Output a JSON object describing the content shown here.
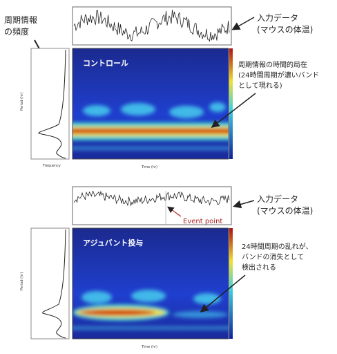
{
  "top": {
    "frequency_label": [
      "周期情報",
      "の頻度"
    ],
    "input_label": [
      "入力データ",
      "(マウスの体温)"
    ],
    "heatmap_title": "コントロール",
    "annotation": [
      "周期情報の時間的局在",
      "(24時間周期が濃いバンド",
      "として現れる)"
    ],
    "period_axis": "Period (hr)",
    "time_axis": "Time (hr)",
    "frequency_axis": "Frequency"
  },
  "bottom": {
    "input_label": [
      "入力データ",
      "(マウスの体温)"
    ],
    "event_label": "Event point",
    "heatmap_title": "アジュバント投与",
    "annotation": [
      "24時間周期の乱れが、",
      "バンドの消失として",
      "検出される"
    ],
    "period_axis": "Period (hr)",
    "time_axis": "Time (hr)"
  }
}
